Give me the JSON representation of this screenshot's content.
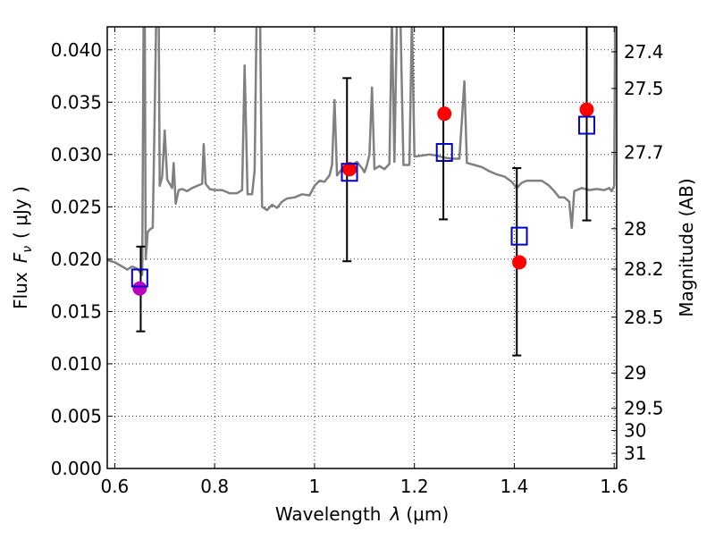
{
  "chart_data": {
    "type": "scatter",
    "xlabel_prefix": "Wavelength",
    "xlabel_symbol": "λ",
    "xlabel_unit": "(μm)",
    "ylabel_prefix": "Flux",
    "ylabel_symbol": "F",
    "ylabel_subscript": "ν",
    "ylabel_unit": "( μJy )",
    "y2label": "Magnitude (AB)",
    "xlim": [
      0.585,
      1.605
    ],
    "ylim": [
      0.0,
      0.0422
    ],
    "grid": true,
    "xticks": [
      0.6,
      0.8,
      1.0,
      1.2,
      1.4,
      1.6
    ],
    "xtick_labels": [
      "0.6",
      "0.8",
      "1",
      "1.2",
      "1.4",
      "1.6"
    ],
    "yticks": [
      0.0,
      0.005,
      0.01,
      0.015,
      0.02,
      0.025,
      0.03,
      0.035,
      0.04
    ],
    "ytick_labels": [
      "0.000",
      "0.005",
      "0.010",
      "0.015",
      "0.020",
      "0.025",
      "0.030",
      "0.035",
      "0.040"
    ],
    "mag_ticks": [
      27.4,
      27.5,
      27.7,
      28,
      28.2,
      28.5,
      29,
      29.5,
      30,
      31
    ],
    "mag_tick_labels": [
      "27.4",
      "27.5",
      "27.7",
      "28",
      "28.2",
      "28.5",
      "29",
      "29.5",
      "30",
      "31"
    ],
    "colors": {
      "spectrum": "#808080",
      "observed": "#ff0000",
      "dropout": "#bf00bf",
      "model": "#0000cc",
      "errorbar": "#000000",
      "grid": "#000000"
    },
    "spectrum": [
      [
        0.585,
        0.0199
      ],
      [
        0.6,
        0.0197
      ],
      [
        0.615,
        0.0193
      ],
      [
        0.625,
        0.019
      ],
      [
        0.635,
        0.0193
      ],
      [
        0.645,
        0.0191
      ],
      [
        0.65,
        0.0188
      ],
      [
        0.655,
        0.0185
      ],
      [
        0.658,
        0.045
      ],
      [
        0.66,
        0.045
      ],
      [
        0.662,
        0.02
      ],
      [
        0.666,
        0.0226
      ],
      [
        0.672,
        0.0229
      ],
      [
        0.676,
        0.023
      ],
      [
        0.68,
        0.034
      ],
      [
        0.683,
        0.0432
      ],
      [
        0.688,
        0.0432
      ],
      [
        0.69,
        0.027
      ],
      [
        0.695,
        0.0279
      ],
      [
        0.7,
        0.0323
      ],
      [
        0.705,
        0.0276
      ],
      [
        0.71,
        0.0272
      ],
      [
        0.715,
        0.0268
      ],
      [
        0.718,
        0.0292
      ],
      [
        0.722,
        0.0253
      ],
      [
        0.728,
        0.0266
      ],
      [
        0.735,
        0.0267
      ],
      [
        0.745,
        0.0265
      ],
      [
        0.755,
        0.0268
      ],
      [
        0.765,
        0.027
      ],
      [
        0.775,
        0.0272
      ],
      [
        0.778,
        0.031
      ],
      [
        0.782,
        0.0272
      ],
      [
        0.79,
        0.0267
      ],
      [
        0.8,
        0.0266
      ],
      [
        0.815,
        0.0266
      ],
      [
        0.83,
        0.0263
      ],
      [
        0.845,
        0.0263
      ],
      [
        0.855,
        0.0266
      ],
      [
        0.86,
        0.0385
      ],
      [
        0.866,
        0.0262
      ],
      [
        0.875,
        0.0262
      ],
      [
        0.88,
        0.0285
      ],
      [
        0.884,
        0.0432
      ],
      [
        0.891,
        0.0432
      ],
      [
        0.895,
        0.025
      ],
      [
        0.905,
        0.0247
      ],
      [
        0.915,
        0.0252
      ],
      [
        0.925,
        0.0249
      ],
      [
        0.935,
        0.0255
      ],
      [
        0.945,
        0.0258
      ],
      [
        0.96,
        0.0259
      ],
      [
        0.975,
        0.0262
      ],
      [
        0.99,
        0.0261
      ],
      [
        1.0,
        0.027
      ],
      [
        1.01,
        0.0275
      ],
      [
        1.02,
        0.0274
      ],
      [
        1.03,
        0.028
      ],
      [
        1.035,
        0.029
      ],
      [
        1.04,
        0.0352
      ],
      [
        1.045,
        0.028
      ],
      [
        1.055,
        0.0286
      ],
      [
        1.065,
        0.0283
      ],
      [
        1.075,
        0.029
      ],
      [
        1.085,
        0.0293
      ],
      [
        1.095,
        0.0287
      ],
      [
        1.1,
        0.0283
      ],
      [
        1.105,
        0.029
      ],
      [
        1.11,
        0.03
      ],
      [
        1.115,
        0.0364
      ],
      [
        1.12,
        0.0286
      ],
      [
        1.13,
        0.0289
      ],
      [
        1.14,
        0.0286
      ],
      [
        1.15,
        0.0291
      ],
      [
        1.155,
        0.043
      ],
      [
        1.16,
        0.0293
      ],
      [
        1.165,
        0.0432
      ],
      [
        1.172,
        0.0432
      ],
      [
        1.178,
        0.029
      ],
      [
        1.185,
        0.029
      ],
      [
        1.19,
        0.029
      ],
      [
        1.195,
        0.0432
      ],
      [
        1.2,
        0.0298
      ],
      [
        1.215,
        0.0299
      ],
      [
        1.23,
        0.03
      ],
      [
        1.245,
        0.0299
      ],
      [
        1.26,
        0.0297
      ],
      [
        1.275,
        0.0296
      ],
      [
        1.29,
        0.0296
      ],
      [
        1.3,
        0.037
      ],
      [
        1.305,
        0.0292
      ],
      [
        1.32,
        0.029
      ],
      [
        1.335,
        0.0288
      ],
      [
        1.35,
        0.0284
      ],
      [
        1.365,
        0.0281
      ],
      [
        1.38,
        0.0279
      ],
      [
        1.395,
        0.0274
      ],
      [
        1.405,
        0.0268
      ],
      [
        1.415,
        0.0273
      ],
      [
        1.425,
        0.0275
      ],
      [
        1.44,
        0.0275
      ],
      [
        1.455,
        0.0275
      ],
      [
        1.47,
        0.027
      ],
      [
        1.48,
        0.0265
      ],
      [
        1.49,
        0.0259
      ],
      [
        1.5,
        0.0259
      ],
      [
        1.51,
        0.0255
      ],
      [
        1.515,
        0.023
      ],
      [
        1.52,
        0.0265
      ],
      [
        1.535,
        0.0268
      ],
      [
        1.55,
        0.0266
      ],
      [
        1.565,
        0.0267
      ],
      [
        1.58,
        0.0266
      ],
      [
        1.59,
        0.0268
      ],
      [
        1.595,
        0.0265
      ],
      [
        1.6,
        0.027
      ],
      [
        1.602,
        0.0432
      ]
    ],
    "observed_points": [
      {
        "x": 0.65,
        "y": 0.0172,
        "type": "dropout"
      },
      {
        "x": 1.07,
        "y": 0.0286,
        "type": "detection"
      },
      {
        "x": 1.26,
        "y": 0.0339,
        "type": "detection"
      },
      {
        "x": 1.41,
        "y": 0.0197,
        "type": "detection"
      },
      {
        "x": 1.545,
        "y": 0.0343,
        "type": "detection"
      }
    ],
    "model_points": [
      {
        "x": 0.65,
        "y": 0.0182
      },
      {
        "x": 1.07,
        "y": 0.0283
      },
      {
        "x": 1.26,
        "y": 0.0302
      },
      {
        "x": 1.41,
        "y": 0.0222
      },
      {
        "x": 1.545,
        "y": 0.0328
      }
    ],
    "error_bars": [
      {
        "x": 0.652,
        "low": 0.0131,
        "high": 0.0212
      },
      {
        "x": 1.065,
        "low": 0.0198,
        "high": 0.0373
      },
      {
        "x": 1.258,
        "low": 0.0238,
        "high": 0.0432
      },
      {
        "x": 1.405,
        "low": 0.0108,
        "high": 0.0287
      },
      {
        "x": 1.545,
        "low": 0.0237,
        "high": 0.0432
      }
    ]
  }
}
